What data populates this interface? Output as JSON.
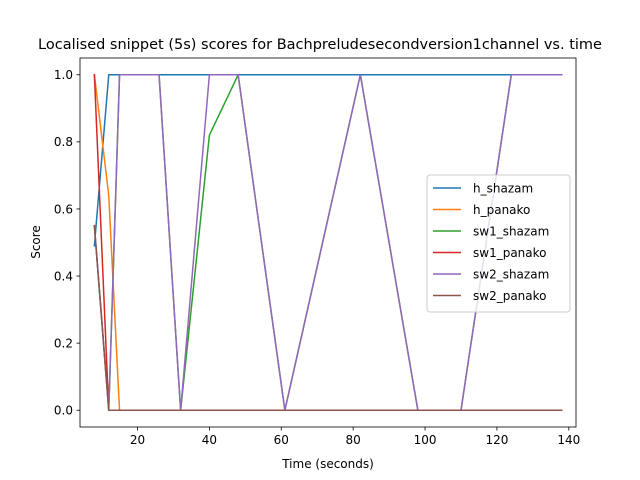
{
  "chart_data": {
    "type": "line",
    "title": "Localised snippet (5s) scores for Bachpreludesecondversion1channel vs. time",
    "xlabel": "Time (seconds)",
    "ylabel": "Score",
    "xlim": [
      4,
      142
    ],
    "ylim": [
      -0.05,
      1.05
    ],
    "xticks": [
      20,
      40,
      60,
      80,
      100,
      120,
      140
    ],
    "yticks": [
      0.0,
      0.2,
      0.4,
      0.6,
      0.8,
      1.0
    ],
    "grid": false,
    "legend_position": "center-right",
    "series": [
      {
        "name": "h_shazam",
        "color": "#1f77b4",
        "x": [
          8,
          12,
          16,
          26,
          32,
          40,
          48,
          61,
          82,
          98,
          110,
          124,
          138
        ],
        "y": [
          0.49,
          1.0,
          1.0,
          1.0,
          1.0,
          1.0,
          1.0,
          1.0,
          1.0,
          1.0,
          1.0,
          1.0,
          1.0
        ]
      },
      {
        "name": "h_panako",
        "color": "#ff7f0e",
        "x": [
          8,
          12,
          15,
          26,
          32,
          40,
          48,
          61,
          82,
          98,
          110,
          124,
          138
        ],
        "y": [
          1.0,
          0.64,
          0.0,
          0.0,
          0.0,
          0.0,
          0.0,
          0.0,
          0.0,
          0.0,
          0.0,
          0.0,
          0.0
        ]
      },
      {
        "name": "sw1_shazam",
        "color": "#2ca02c",
        "x": [
          8,
          12,
          15,
          26,
          32,
          40,
          48,
          61,
          82,
          98,
          110,
          124,
          138
        ],
        "y": [
          0.55,
          0.0,
          1.0,
          1.0,
          0.0,
          0.82,
          1.0,
          0.0,
          1.0,
          0.0,
          0.0,
          1.0,
          1.0
        ]
      },
      {
        "name": "sw1_panako",
        "color": "#d62728",
        "x": [
          8,
          12,
          15,
          26,
          32,
          40,
          48,
          61,
          82,
          98,
          110,
          124,
          138
        ],
        "y": [
          1.0,
          0.0,
          0.0,
          0.0,
          0.0,
          0.0,
          0.0,
          0.0,
          0.0,
          0.0,
          0.0,
          0.0,
          0.0
        ]
      },
      {
        "name": "sw2_shazam",
        "color": "#9467bd",
        "x": [
          8,
          12,
          15,
          26,
          32,
          40,
          48,
          61,
          82,
          98,
          110,
          124,
          138
        ],
        "y": [
          0.55,
          0.0,
          1.0,
          1.0,
          0.0,
          1.0,
          1.0,
          0.0,
          1.0,
          0.0,
          0.0,
          1.0,
          1.0
        ]
      },
      {
        "name": "sw2_panako",
        "color": "#8c564b",
        "x": [
          8,
          12,
          15,
          26,
          32,
          40,
          48,
          61,
          82,
          98,
          110,
          124,
          138
        ],
        "y": [
          0.55,
          0.0,
          0.0,
          0.0,
          0.0,
          0.0,
          0.0,
          0.0,
          0.0,
          0.0,
          0.0,
          0.0,
          0.0
        ]
      }
    ]
  }
}
